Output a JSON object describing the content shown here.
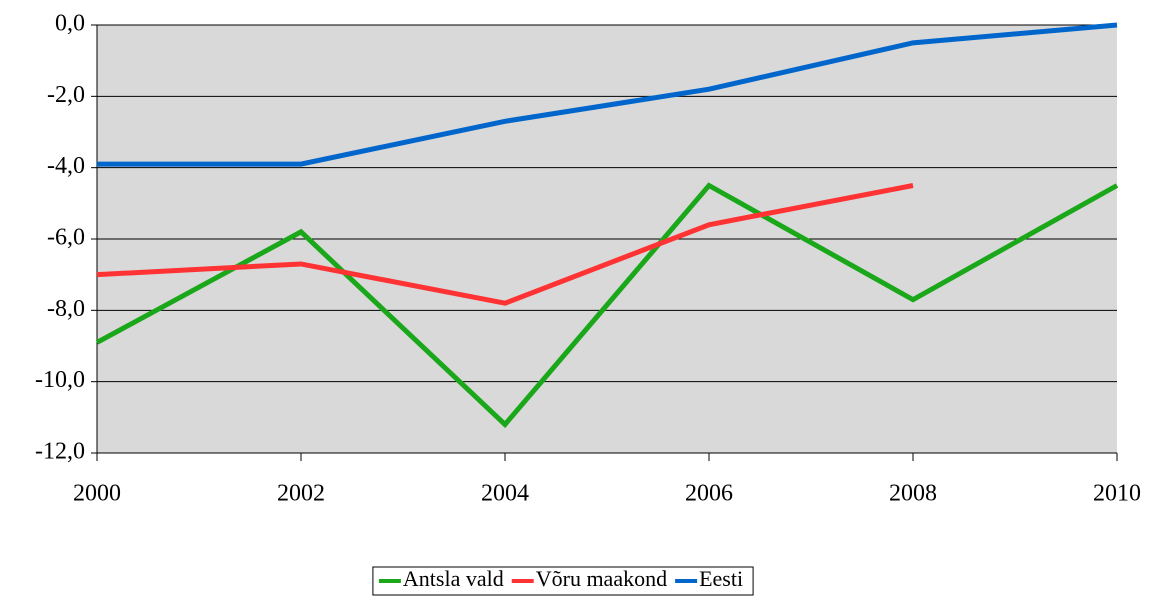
{
  "chart_data": {
    "type": "line",
    "x": [
      2000,
      2002,
      2004,
      2006,
      2008,
      2010
    ],
    "series": [
      {
        "name": "Antsla vald",
        "color": "#1aa81a",
        "values": [
          -8.9,
          -5.8,
          -11.2,
          -4.5,
          -7.7,
          -4.5
        ]
      },
      {
        "name": "Võru maakond",
        "color": "#ff3333",
        "values": [
          -7.0,
          -6.7,
          -7.8,
          -5.6,
          -4.5,
          null
        ]
      },
      {
        "name": "Eesti",
        "color": "#0066cc",
        "values": [
          -3.9,
          -3.9,
          -2.7,
          -1.8,
          -0.5,
          0.0
        ]
      }
    ],
    "xlim": [
      2000,
      2010
    ],
    "xticks": [
      2000,
      2002,
      2004,
      2006,
      2008,
      2010
    ],
    "ylim": [
      -12,
      0
    ],
    "yticks": [
      {
        "value": 0,
        "label": "0,0"
      },
      {
        "value": -2,
        "label": "-2,0"
      },
      {
        "value": -4,
        "label": "-4,0"
      },
      {
        "value": -6,
        "label": "-6,0"
      },
      {
        "value": -8,
        "label": "-8,0"
      },
      {
        "value": -10,
        "label": "-10,0"
      },
      {
        "value": -12,
        "label": "-12,0"
      }
    ],
    "grid": true,
    "legend": "bottom",
    "background": "#d9d9d9"
  }
}
